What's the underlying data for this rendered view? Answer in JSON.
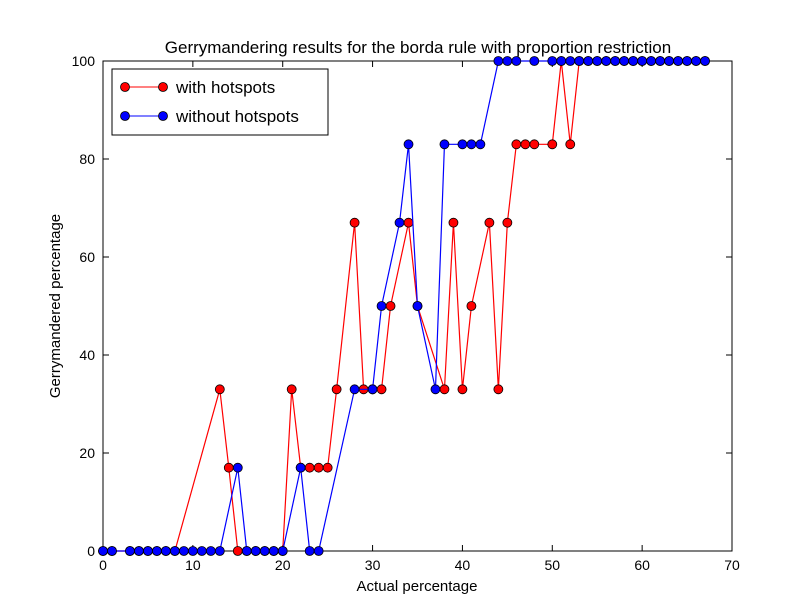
{
  "chart_data": {
    "type": "line",
    "title": "Gerrymandering results for the borda rule with proportion restriction",
    "xlabel": "Actual percentage",
    "ylabel": "Gerrymandered percentage",
    "xlim": [
      0,
      70
    ],
    "ylim": [
      0,
      100
    ],
    "xticks": [
      0,
      10,
      20,
      30,
      40,
      50,
      60,
      70
    ],
    "yticks": [
      0,
      20,
      40,
      60,
      80,
      100
    ],
    "grid": false,
    "legend_position": "top-left",
    "series": [
      {
        "name": "with hotspots",
        "color": "#ff0000",
        "marker": "circle",
        "x": [
          0,
          1,
          3,
          4,
          5,
          6,
          7,
          8,
          13,
          14,
          15,
          16,
          17,
          18,
          19,
          20,
          21,
          22,
          23,
          24,
          25,
          26,
          28,
          29,
          30,
          31,
          32,
          34,
          35,
          38,
          39,
          40,
          41,
          43,
          44,
          45,
          46,
          47,
          48,
          50,
          51,
          52,
          53,
          54,
          55,
          56,
          57,
          58,
          59,
          60,
          61,
          62,
          63,
          64,
          65,
          66,
          67
        ],
        "y": [
          0,
          0,
          0,
          0,
          0,
          0,
          0,
          0,
          33,
          17,
          0,
          0,
          0,
          0,
          0,
          0,
          33,
          17,
          17,
          17,
          17,
          33,
          67,
          33,
          33,
          33,
          50,
          67,
          50,
          33,
          67,
          33,
          50,
          67,
          33,
          67,
          83,
          83,
          83,
          83,
          100,
          83,
          100,
          100,
          100,
          100,
          100,
          100,
          100,
          100,
          100,
          100,
          100,
          100,
          100,
          100,
          100
        ]
      },
      {
        "name": "without hotspots",
        "color": "#0000ff",
        "marker": "circle",
        "x": [
          0,
          1,
          3,
          4,
          5,
          6,
          7,
          8,
          9,
          10,
          11,
          12,
          13,
          15,
          16,
          17,
          18,
          19,
          20,
          22,
          23,
          24,
          28,
          30,
          31,
          33,
          34,
          35,
          37,
          38,
          40,
          41,
          42,
          44,
          45,
          46,
          48,
          50,
          51,
          52,
          53,
          54,
          55,
          56,
          57,
          58,
          59,
          60,
          61,
          62,
          63,
          64,
          65,
          66,
          67
        ],
        "y": [
          0,
          0,
          0,
          0,
          0,
          0,
          0,
          0,
          0,
          0,
          0,
          0,
          0,
          17,
          0,
          0,
          0,
          0,
          0,
          17,
          0,
          0,
          33,
          33,
          50,
          67,
          83,
          50,
          33,
          83,
          83,
          83,
          83,
          100,
          100,
          100,
          100,
          100,
          100,
          100,
          100,
          100,
          100,
          100,
          100,
          100,
          100,
          100,
          100,
          100,
          100,
          100,
          100,
          100,
          100
        ]
      }
    ]
  }
}
